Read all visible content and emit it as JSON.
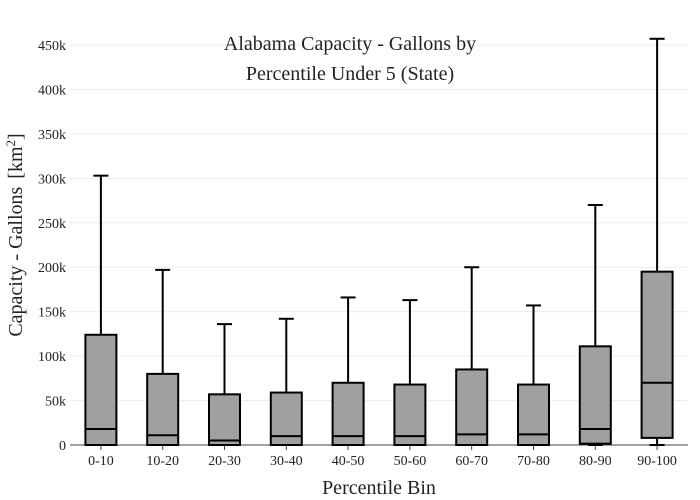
{
  "chart_data": {
    "type": "box",
    "title_line1": "Alabama Capacity - Gallons by",
    "title_line2": "Percentile Under 5 (State)",
    "xlabel": "Percentile Bin",
    "ylabel": "Capacity - Gallons",
    "ylabel_unit_base": "[km",
    "ylabel_unit_exp": "2",
    "ylabel_unit_close": "]",
    "ylim": [
      0,
      460000
    ],
    "y_ticks": [
      0,
      50000,
      100000,
      150000,
      200000,
      250000,
      300000,
      350000,
      400000,
      450000
    ],
    "y_tick_labels": [
      "0",
      "50k",
      "100k",
      "150k",
      "200k",
      "250k",
      "300k",
      "350k",
      "400k",
      "450k"
    ],
    "grid": true,
    "box_color": "#a0a0a0",
    "line_color": "#000000",
    "categories": [
      "0-10",
      "10-20",
      "20-30",
      "30-40",
      "40-50",
      "50-60",
      "60-70",
      "70-80",
      "80-90",
      "90-100"
    ],
    "boxes": [
      {
        "min": 0,
        "q1": 0,
        "median": 18000,
        "q3": 124000,
        "max": 303000
      },
      {
        "min": 0,
        "q1": 0,
        "median": 11000,
        "q3": 80000,
        "max": 197000
      },
      {
        "min": 0,
        "q1": 0,
        "median": 5000,
        "q3": 57000,
        "max": 136000
      },
      {
        "min": 0,
        "q1": 0,
        "median": 10000,
        "q3": 59000,
        "max": 142000
      },
      {
        "min": 0,
        "q1": 0,
        "median": 10000,
        "q3": 70000,
        "max": 166000
      },
      {
        "min": 0,
        "q1": 0,
        "median": 10000,
        "q3": 68000,
        "max": 163000
      },
      {
        "min": 0,
        "q1": 0,
        "median": 12000,
        "q3": 85000,
        "max": 200000
      },
      {
        "min": 0,
        "q1": 0,
        "median": 12000,
        "q3": 68000,
        "max": 157000
      },
      {
        "min": 0,
        "q1": 1500,
        "median": 18000,
        "q3": 111000,
        "max": 270000
      },
      {
        "min": 0,
        "q1": 8000,
        "median": 70000,
        "q3": 195000,
        "max": 457000
      }
    ]
  }
}
